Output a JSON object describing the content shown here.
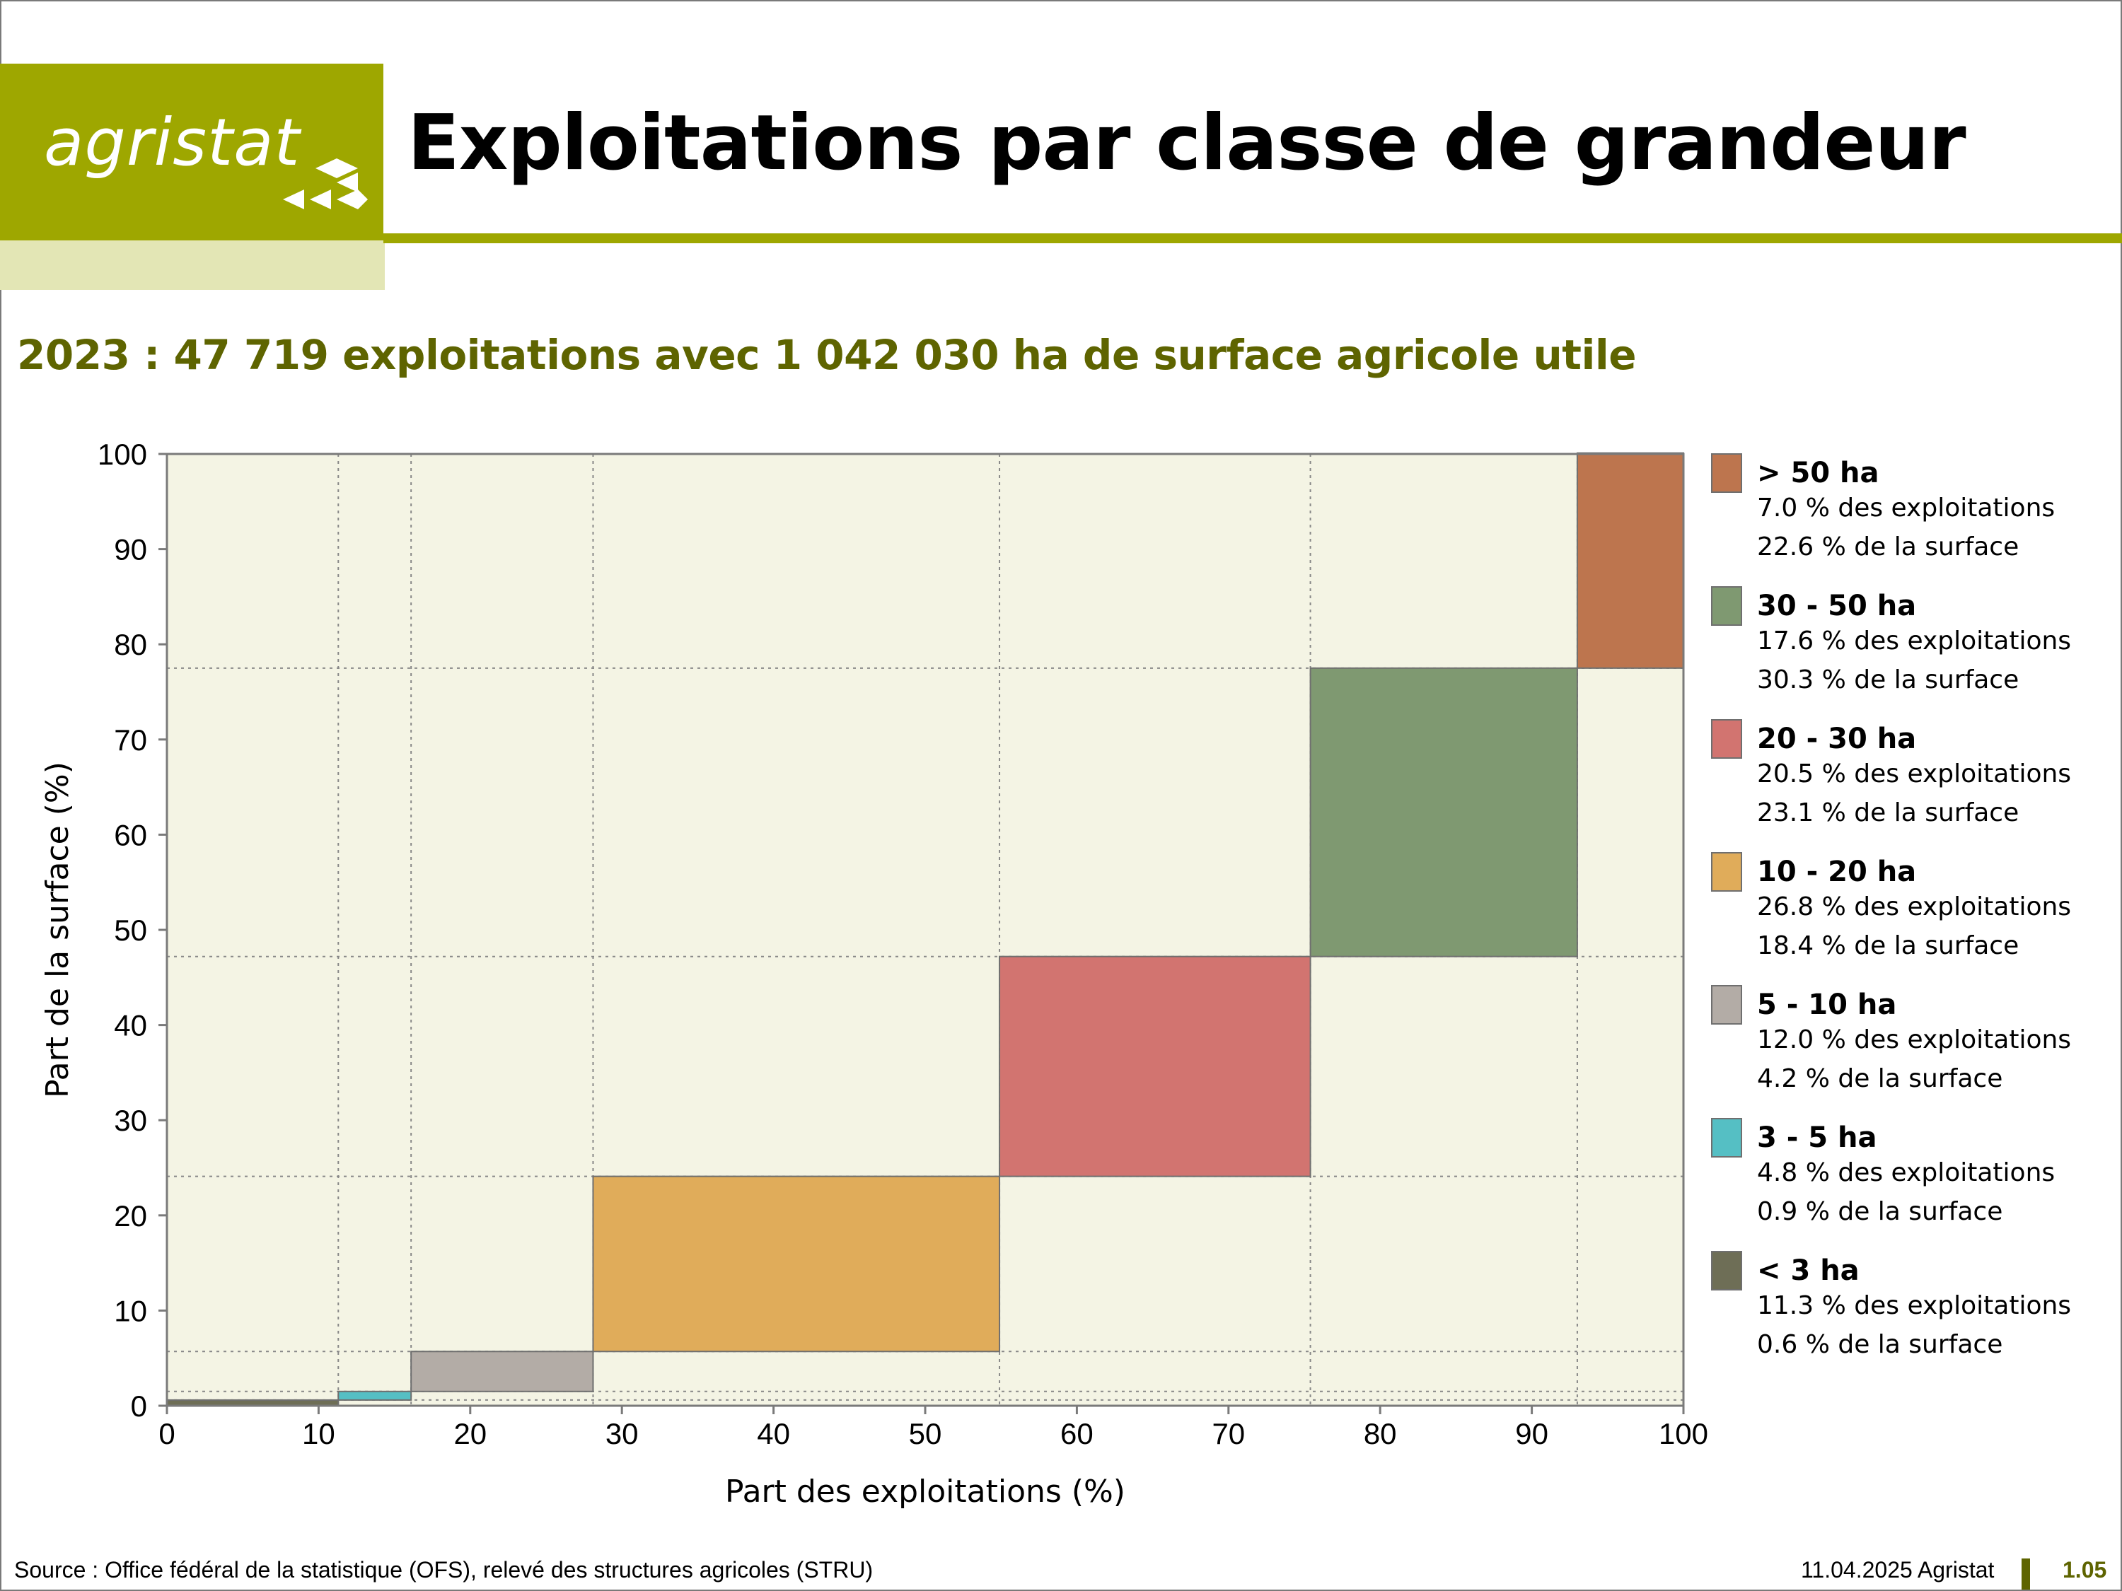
{
  "header": {
    "logo_text": "agristat",
    "title": "Exploitations par classe de grandeur"
  },
  "subtitle": "2023 : 47 719 exploitations avec 1 042 030 ha de surface agricole utile",
  "footer": {
    "source": "Source : Office fédéral de la statistique (OFS), relevé des structures agricoles (STRU)",
    "date": "11.04.2025 Agristat",
    "page": "1.05"
  },
  "chart_data": {
    "type": "mekko",
    "xlabel": "Part des exploitations (%)",
    "ylabel": "Part de la surface (%)",
    "xlim": [
      0,
      100
    ],
    "ylim": [
      0,
      100
    ],
    "x_ticks": [
      0,
      10,
      20,
      30,
      40,
      50,
      60,
      70,
      80,
      90,
      100
    ],
    "y_ticks": [
      0,
      10,
      20,
      30,
      40,
      50,
      60,
      70,
      80,
      90,
      100
    ],
    "grid": "dotted",
    "legend_position": "right",
    "colors": {
      "plot_background": "#f4f4e4",
      "axis": "#7a7a7a"
    },
    "series": [
      {
        "name": "< 3 ha",
        "share_farms": 11.3,
        "share_area": 0.6,
        "color": "#6e6e56",
        "farms_label": "11.3 % des exploitations",
        "area_label": "0.6 % de la surface"
      },
      {
        "name": "3 - 5 ha",
        "share_farms": 4.8,
        "share_area": 0.9,
        "color": "#55bfc4",
        "farms_label": "4.8 % des exploitations",
        "area_label": "0.9 % de la surface"
      },
      {
        "name": "5 - 10 ha",
        "share_farms": 12.0,
        "share_area": 4.2,
        "color": "#b3aca6",
        "farms_label": "12.0 % des exploitations",
        "area_label": "4.2 % de la surface"
      },
      {
        "name": "10 - 20 ha",
        "share_farms": 26.8,
        "share_area": 18.4,
        "color": "#e0ac5a",
        "farms_label": "26.8 % des exploitations",
        "area_label": "18.4 % de la surface"
      },
      {
        "name": "20 - 30 ha",
        "share_farms": 20.5,
        "share_area": 23.1,
        "color": "#d27470",
        "farms_label": "20.5 % des exploitations",
        "area_label": "23.1 % de la surface"
      },
      {
        "name": "30 - 50 ha",
        "share_farms": 17.6,
        "share_area": 30.3,
        "color": "#7f9971",
        "farms_label": "17.6 % des exploitations",
        "area_label": "30.3 % de la surface"
      },
      {
        "name": "> 50 ha",
        "share_farms": 7.0,
        "share_area": 22.6,
        "color": "#bd754e",
        "farms_label": "7.0 % des exploitations",
        "area_label": "22.6 % de la surface"
      }
    ]
  }
}
